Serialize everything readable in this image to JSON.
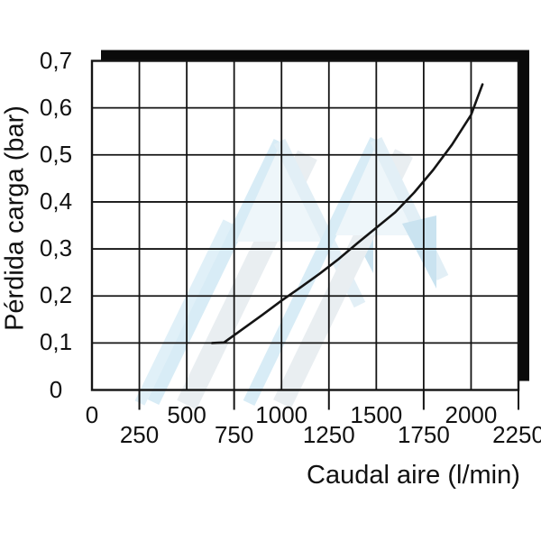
{
  "chart_data": {
    "type": "line",
    "title": "",
    "xlabel": "Caudal aire (l/min)",
    "ylabel": "Pérdida carga (bar)",
    "xlim": [
      0,
      2250
    ],
    "ylim": [
      0,
      0.7
    ],
    "grid": true,
    "legend": false,
    "x_ticks": [
      {
        "value": 0,
        "label": "0",
        "row": 1
      },
      {
        "value": 250,
        "label": "250",
        "row": 2
      },
      {
        "value": 500,
        "label": "500",
        "row": 1
      },
      {
        "value": 750,
        "label": "750",
        "row": 2
      },
      {
        "value": 1000,
        "label": "1000",
        "row": 1
      },
      {
        "value": 1250,
        "label": "1250",
        "row": 2
      },
      {
        "value": 1500,
        "label": "1500",
        "row": 1
      },
      {
        "value": 1750,
        "label": "1750",
        "row": 2
      },
      {
        "value": 2000,
        "label": "2000",
        "row": 1
      },
      {
        "value": 2250,
        "label": "2250",
        "row": 2
      }
    ],
    "y_ticks": [
      {
        "value": 0.0,
        "label": "0"
      },
      {
        "value": 0.1,
        "label": "0,1"
      },
      {
        "value": 0.2,
        "label": "0,2"
      },
      {
        "value": 0.3,
        "label": "0,3"
      },
      {
        "value": 0.4,
        "label": "0,4"
      },
      {
        "value": 0.5,
        "label": "0,5"
      },
      {
        "value": 0.6,
        "label": "0,6"
      },
      {
        "value": 0.7,
        "label": "0,7"
      }
    ],
    "series": [
      {
        "name": "perdida-carga-curve",
        "color": "#141414",
        "points": [
          [
            633,
            0.1
          ],
          [
            697,
            0.101
          ],
          [
            800,
            0.131
          ],
          [
            900,
            0.16
          ],
          [
            1000,
            0.19
          ],
          [
            1100,
            0.218
          ],
          [
            1200,
            0.247
          ],
          [
            1300,
            0.278
          ],
          [
            1400,
            0.312
          ],
          [
            1500,
            0.345
          ],
          [
            1600,
            0.378
          ],
          [
            1700,
            0.42
          ],
          [
            1800,
            0.468
          ],
          [
            1900,
            0.522
          ],
          [
            2000,
            0.585
          ],
          [
            2060,
            0.65
          ]
        ]
      }
    ]
  },
  "colors": {
    "axis": "#141414",
    "shadow": "#0a0a0a",
    "watermark_blue": "#cfe8f4",
    "watermark_gray": "#e4eaee",
    "watermark_accent": "#bddded"
  }
}
